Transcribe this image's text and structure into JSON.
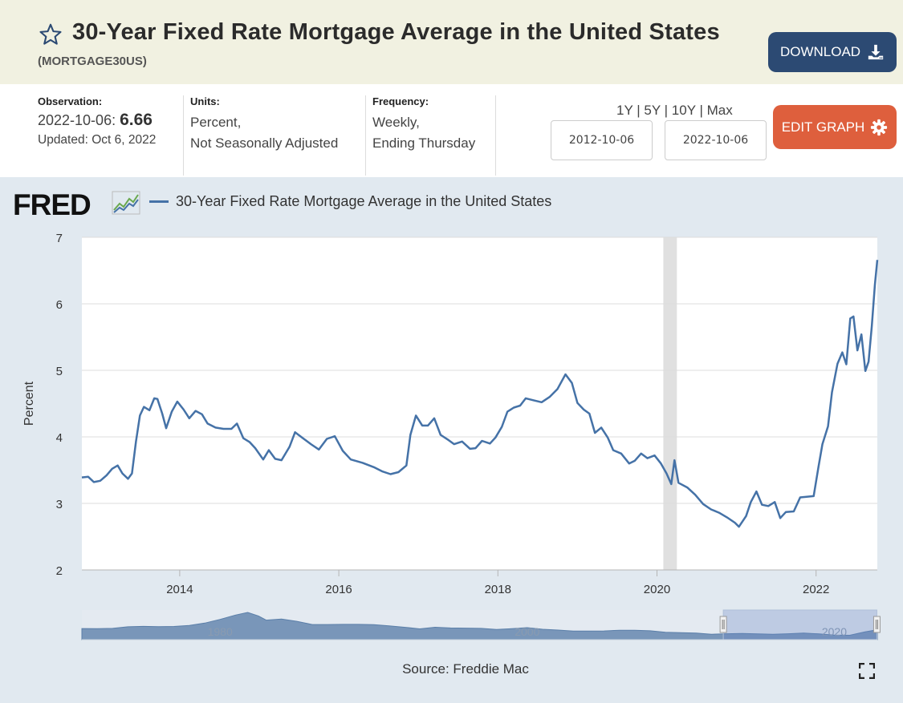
{
  "header": {
    "title": "30-Year Fixed Rate Mortgage Average in the United States",
    "series_id": "(MORTGAGE30US)",
    "download_label": "DOWNLOAD",
    "star_icon": "star-outline-icon",
    "download_icon": "download-icon"
  },
  "meta": {
    "observation_label": "Observation:",
    "observation_date": "2022-10-06:",
    "observation_value": "6.66",
    "updated": "Updated: Oct 6, 2022",
    "units_label": "Units:",
    "units_line1": "Percent,",
    "units_line2": "Not Seasonally Adjusted",
    "frequency_label": "Frequency:",
    "frequency_line1": "Weekly,",
    "frequency_line2": "Ending Thursday"
  },
  "controls": {
    "ranges": [
      "1Y",
      "5Y",
      "10Y",
      "Max"
    ],
    "separator": "|",
    "start_date": "2012-10-06",
    "end_date": "2022-10-06",
    "edit_label": "EDIT GRAPH",
    "edit_icon": "gear-icon"
  },
  "colors": {
    "line": "#4572a7",
    "recession": "#e0e0e0",
    "navigator_fill": "#7996b9",
    "download_bg": "#2c4a73",
    "edit_bg": "#de5f3d"
  },
  "chart_data": {
    "type": "line",
    "logo": "FRED",
    "title": "30-Year Fixed Rate Mortgage Average in the United States",
    "legend": [
      "30-Year Fixed Rate Mortgage Average in the United States"
    ],
    "xlabel": "",
    "ylabel": "Percent",
    "ylim": [
      2,
      7
    ],
    "xlim": [
      2012.77,
      2022.77
    ],
    "yticks": [
      2,
      3,
      4,
      5,
      6,
      7
    ],
    "xticks": [
      2014,
      2016,
      2018,
      2020,
      2022
    ],
    "grid": true,
    "recession": [
      [
        2020.08,
        2020.25
      ]
    ],
    "source": "Source: Freddie Mac",
    "navigator": {
      "labels": [
        "1980",
        "2000",
        "2020"
      ],
      "label_years": [
        1980,
        2000,
        2020
      ],
      "xlim": [
        1971,
        2022.8
      ],
      "selected": [
        2012.77,
        2022.77
      ],
      "series": [
        {
          "x": 1971.0,
          "y": 7.5
        },
        {
          "x": 1972.0,
          "y": 7.4
        },
        {
          "x": 1973.0,
          "y": 7.6
        },
        {
          "x": 1974.0,
          "y": 8.7
        },
        {
          "x": 1975.0,
          "y": 9.0
        },
        {
          "x": 1976.0,
          "y": 8.8
        },
        {
          "x": 1977.0,
          "y": 8.9
        },
        {
          "x": 1978.0,
          "y": 9.6
        },
        {
          "x": 1979.0,
          "y": 11.2
        },
        {
          "x": 1980.0,
          "y": 13.7
        },
        {
          "x": 1981.0,
          "y": 16.6
        },
        {
          "x": 1981.8,
          "y": 18.4
        },
        {
          "x": 1982.5,
          "y": 16.0
        },
        {
          "x": 1983.0,
          "y": 13.2
        },
        {
          "x": 1984.0,
          "y": 13.9
        },
        {
          "x": 1985.0,
          "y": 12.4
        },
        {
          "x": 1986.0,
          "y": 10.2
        },
        {
          "x": 1987.0,
          "y": 10.2
        },
        {
          "x": 1988.0,
          "y": 10.3
        },
        {
          "x": 1989.0,
          "y": 10.3
        },
        {
          "x": 1990.0,
          "y": 10.1
        },
        {
          "x": 1991.0,
          "y": 9.3
        },
        {
          "x": 1992.0,
          "y": 8.4
        },
        {
          "x": 1993.0,
          "y": 7.3
        },
        {
          "x": 1994.0,
          "y": 8.4
        },
        {
          "x": 1995.0,
          "y": 7.9
        },
        {
          "x": 1996.0,
          "y": 7.8
        },
        {
          "x": 1997.0,
          "y": 7.6
        },
        {
          "x": 1998.0,
          "y": 6.9
        },
        {
          "x": 1999.0,
          "y": 7.4
        },
        {
          "x": 2000.0,
          "y": 8.1
        },
        {
          "x": 2001.0,
          "y": 7.0
        },
        {
          "x": 2002.0,
          "y": 6.5
        },
        {
          "x": 2003.0,
          "y": 5.8
        },
        {
          "x": 2004.0,
          "y": 5.8
        },
        {
          "x": 2005.0,
          "y": 5.9
        },
        {
          "x": 2006.0,
          "y": 6.4
        },
        {
          "x": 2007.0,
          "y": 6.3
        },
        {
          "x": 2008.0,
          "y": 6.0
        },
        {
          "x": 2009.0,
          "y": 5.0
        },
        {
          "x": 2010.0,
          "y": 4.7
        },
        {
          "x": 2011.0,
          "y": 4.5
        },
        {
          "x": 2012.0,
          "y": 3.7
        },
        {
          "x": 2013.0,
          "y": 4.0
        },
        {
          "x": 2014.0,
          "y": 4.2
        },
        {
          "x": 2015.0,
          "y": 3.9
        },
        {
          "x": 2016.0,
          "y": 3.7
        },
        {
          "x": 2017.0,
          "y": 4.0
        },
        {
          "x": 2018.0,
          "y": 4.5
        },
        {
          "x": 2019.0,
          "y": 3.9
        },
        {
          "x": 2020.0,
          "y": 3.1
        },
        {
          "x": 2021.0,
          "y": 3.0
        },
        {
          "x": 2022.0,
          "y": 5.3
        },
        {
          "x": 2022.8,
          "y": 6.7
        }
      ]
    },
    "series": [
      {
        "name": "30-Year Fixed Rate Mortgage Average in the United States",
        "points": [
          {
            "x": 2012.77,
            "y": 3.39
          },
          {
            "x": 2012.85,
            "y": 3.4
          },
          {
            "x": 2012.92,
            "y": 3.32
          },
          {
            "x": 2013.0,
            "y": 3.34
          },
          {
            "x": 2013.08,
            "y": 3.42
          },
          {
            "x": 2013.15,
            "y": 3.52
          },
          {
            "x": 2013.22,
            "y": 3.57
          },
          {
            "x": 2013.28,
            "y": 3.45
          },
          {
            "x": 2013.35,
            "y": 3.37
          },
          {
            "x": 2013.4,
            "y": 3.45
          },
          {
            "x": 2013.45,
            "y": 3.93
          },
          {
            "x": 2013.5,
            "y": 4.32
          },
          {
            "x": 2013.55,
            "y": 4.45
          },
          {
            "x": 2013.62,
            "y": 4.4
          },
          {
            "x": 2013.68,
            "y": 4.58
          },
          {
            "x": 2013.72,
            "y": 4.57
          },
          {
            "x": 2013.78,
            "y": 4.35
          },
          {
            "x": 2013.83,
            "y": 4.13
          },
          {
            "x": 2013.9,
            "y": 4.38
          },
          {
            "x": 2013.97,
            "y": 4.53
          },
          {
            "x": 2014.05,
            "y": 4.41
          },
          {
            "x": 2014.12,
            "y": 4.28
          },
          {
            "x": 2014.2,
            "y": 4.39
          },
          {
            "x": 2014.28,
            "y": 4.34
          },
          {
            "x": 2014.35,
            "y": 4.2
          },
          {
            "x": 2014.45,
            "y": 4.14
          },
          {
            "x": 2014.55,
            "y": 4.12
          },
          {
            "x": 2014.65,
            "y": 4.12
          },
          {
            "x": 2014.72,
            "y": 4.2
          },
          {
            "x": 2014.8,
            "y": 3.98
          },
          {
            "x": 2014.88,
            "y": 3.92
          },
          {
            "x": 2014.95,
            "y": 3.83
          },
          {
            "x": 2015.05,
            "y": 3.66
          },
          {
            "x": 2015.12,
            "y": 3.8
          },
          {
            "x": 2015.2,
            "y": 3.67
          },
          {
            "x": 2015.28,
            "y": 3.65
          },
          {
            "x": 2015.38,
            "y": 3.85
          },
          {
            "x": 2015.45,
            "y": 4.07
          },
          {
            "x": 2015.55,
            "y": 3.98
          },
          {
            "x": 2015.65,
            "y": 3.89
          },
          {
            "x": 2015.75,
            "y": 3.81
          },
          {
            "x": 2015.85,
            "y": 3.97
          },
          {
            "x": 2015.95,
            "y": 4.01
          },
          {
            "x": 2016.05,
            "y": 3.79
          },
          {
            "x": 2016.15,
            "y": 3.66
          },
          {
            "x": 2016.3,
            "y": 3.61
          },
          {
            "x": 2016.45,
            "y": 3.54
          },
          {
            "x": 2016.55,
            "y": 3.48
          },
          {
            "x": 2016.65,
            "y": 3.44
          },
          {
            "x": 2016.75,
            "y": 3.47
          },
          {
            "x": 2016.85,
            "y": 3.57
          },
          {
            "x": 2016.9,
            "y": 4.03
          },
          {
            "x": 2016.97,
            "y": 4.32
          },
          {
            "x": 2017.05,
            "y": 4.17
          },
          {
            "x": 2017.12,
            "y": 4.17
          },
          {
            "x": 2017.2,
            "y": 4.28
          },
          {
            "x": 2017.28,
            "y": 4.03
          },
          {
            "x": 2017.38,
            "y": 3.95
          },
          {
            "x": 2017.45,
            "y": 3.89
          },
          {
            "x": 2017.55,
            "y": 3.93
          },
          {
            "x": 2017.65,
            "y": 3.82
          },
          {
            "x": 2017.72,
            "y": 3.83
          },
          {
            "x": 2017.8,
            "y": 3.94
          },
          {
            "x": 2017.9,
            "y": 3.9
          },
          {
            "x": 2017.97,
            "y": 3.99
          },
          {
            "x": 2018.05,
            "y": 4.15
          },
          {
            "x": 2018.12,
            "y": 4.38
          },
          {
            "x": 2018.2,
            "y": 4.44
          },
          {
            "x": 2018.28,
            "y": 4.47
          },
          {
            "x": 2018.35,
            "y": 4.58
          },
          {
            "x": 2018.45,
            "y": 4.55
          },
          {
            "x": 2018.55,
            "y": 4.52
          },
          {
            "x": 2018.65,
            "y": 4.6
          },
          {
            "x": 2018.75,
            "y": 4.72
          },
          {
            "x": 2018.85,
            "y": 4.94
          },
          {
            "x": 2018.93,
            "y": 4.81
          },
          {
            "x": 2019.0,
            "y": 4.51
          },
          {
            "x": 2019.08,
            "y": 4.41
          },
          {
            "x": 2019.15,
            "y": 4.35
          },
          {
            "x": 2019.22,
            "y": 4.06
          },
          {
            "x": 2019.3,
            "y": 4.14
          },
          {
            "x": 2019.38,
            "y": 3.99
          },
          {
            "x": 2019.45,
            "y": 3.8
          },
          {
            "x": 2019.55,
            "y": 3.75
          },
          {
            "x": 2019.65,
            "y": 3.6
          },
          {
            "x": 2019.72,
            "y": 3.64
          },
          {
            "x": 2019.8,
            "y": 3.75
          },
          {
            "x": 2019.88,
            "y": 3.68
          },
          {
            "x": 2019.97,
            "y": 3.72
          },
          {
            "x": 2020.05,
            "y": 3.6
          },
          {
            "x": 2020.12,
            "y": 3.45
          },
          {
            "x": 2020.18,
            "y": 3.29
          },
          {
            "x": 2020.22,
            "y": 3.65
          },
          {
            "x": 2020.27,
            "y": 3.31
          },
          {
            "x": 2020.38,
            "y": 3.24
          },
          {
            "x": 2020.48,
            "y": 3.13
          },
          {
            "x": 2020.58,
            "y": 2.99
          },
          {
            "x": 2020.68,
            "y": 2.91
          },
          {
            "x": 2020.78,
            "y": 2.86
          },
          {
            "x": 2020.88,
            "y": 2.79
          },
          {
            "x": 2020.98,
            "y": 2.71
          },
          {
            "x": 2021.03,
            "y": 2.65
          },
          {
            "x": 2021.12,
            "y": 2.81
          },
          {
            "x": 2021.18,
            "y": 3.02
          },
          {
            "x": 2021.25,
            "y": 3.18
          },
          {
            "x": 2021.32,
            "y": 2.98
          },
          {
            "x": 2021.4,
            "y": 2.96
          },
          {
            "x": 2021.48,
            "y": 3.02
          },
          {
            "x": 2021.55,
            "y": 2.78
          },
          {
            "x": 2021.62,
            "y": 2.87
          },
          {
            "x": 2021.72,
            "y": 2.88
          },
          {
            "x": 2021.8,
            "y": 3.09
          },
          {
            "x": 2021.88,
            "y": 3.1
          },
          {
            "x": 2021.97,
            "y": 3.11
          },
          {
            "x": 2022.03,
            "y": 3.55
          },
          {
            "x": 2022.08,
            "y": 3.89
          },
          {
            "x": 2022.15,
            "y": 4.16
          },
          {
            "x": 2022.2,
            "y": 4.67
          },
          {
            "x": 2022.27,
            "y": 5.1
          },
          {
            "x": 2022.33,
            "y": 5.27
          },
          {
            "x": 2022.38,
            "y": 5.09
          },
          {
            "x": 2022.43,
            "y": 5.78
          },
          {
            "x": 2022.47,
            "y": 5.81
          },
          {
            "x": 2022.52,
            "y": 5.3
          },
          {
            "x": 2022.57,
            "y": 5.54
          },
          {
            "x": 2022.62,
            "y": 4.99
          },
          {
            "x": 2022.66,
            "y": 5.13
          },
          {
            "x": 2022.7,
            "y": 5.66
          },
          {
            "x": 2022.74,
            "y": 6.29
          },
          {
            "x": 2022.77,
            "y": 6.66
          }
        ]
      }
    ]
  }
}
